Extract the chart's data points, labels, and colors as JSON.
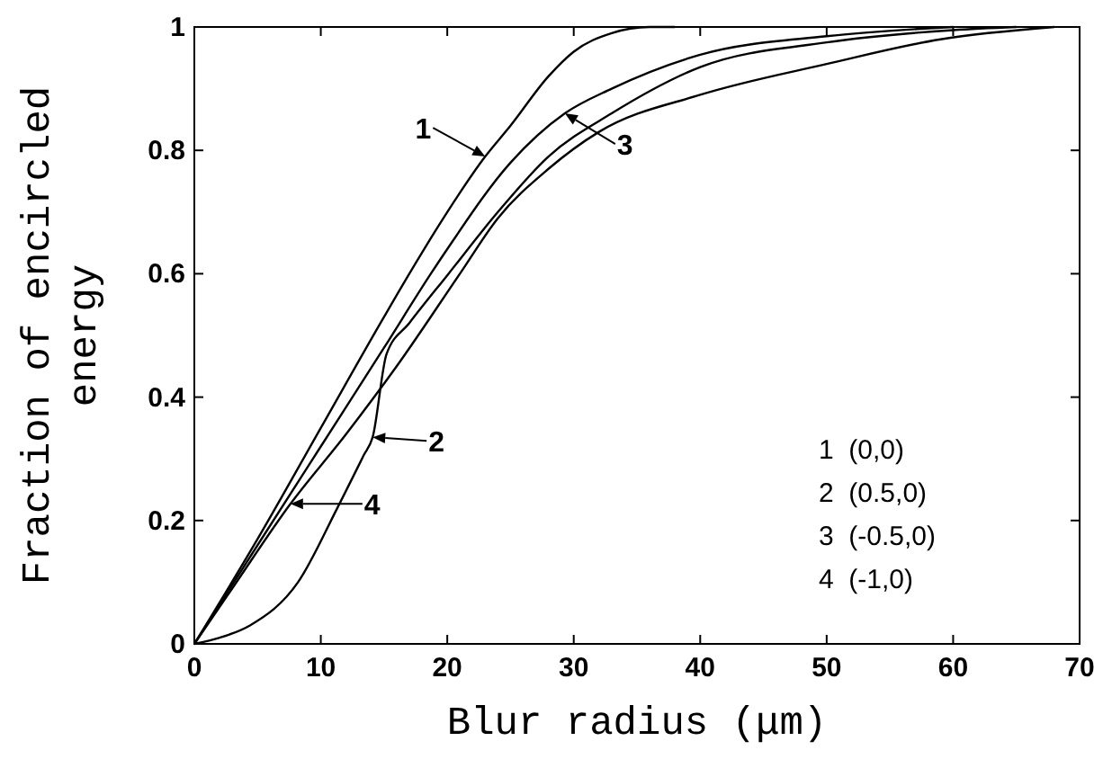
{
  "chart_data": {
    "type": "line",
    "xlabel": "Blur radius (μm)",
    "ylabel": "Fraction of encircled energy",
    "xlim": [
      0,
      70
    ],
    "ylim": [
      0,
      1
    ],
    "xticks": [
      0,
      10,
      20,
      30,
      40,
      50,
      60,
      70
    ],
    "yticks": [
      0,
      0.2,
      0.4,
      0.6,
      0.8,
      1
    ],
    "grid": false,
    "marker": "none",
    "line_style": "solid",
    "series": [
      {
        "color": "#000000",
        "x": [
          0,
          5,
          10,
          15,
          17,
          20,
          23,
          25,
          28,
          30,
          33,
          36,
          38
        ],
        "values": [
          0,
          0.17,
          0.35,
          0.53,
          0.6,
          0.7,
          0.79,
          0.84,
          0.92,
          0.96,
          0.99,
          1,
          1
        ]
      },
      {
        "color": "#000000",
        "x": [
          0,
          2,
          4.4,
          8.2,
          11.3,
          13.4,
          14.1,
          15.2,
          17,
          20.1,
          24,
          28,
          33,
          40,
          50,
          60,
          65
        ],
        "values": [
          0,
          0.01,
          0.03,
          0.1,
          0.22,
          0.306,
          0.335,
          0.47,
          0.52,
          0.6,
          0.7,
          0.79,
          0.86,
          0.935,
          0.975,
          0.995,
          1
        ]
      },
      {
        "color": "#000000",
        "x": [
          0,
          5,
          10,
          15,
          18.7,
          20,
          25,
          29.3,
          33,
          40,
          50,
          60
        ],
        "values": [
          0,
          0.16,
          0.32,
          0.48,
          0.6,
          0.64,
          0.78,
          0.86,
          0.9,
          0.955,
          0.985,
          1
        ]
      },
      {
        "color": "#000000",
        "x": [
          0,
          3,
          7.6,
          12,
          16,
          21,
          24,
          28,
          32,
          40,
          50,
          59,
          68
        ],
        "values": [
          0,
          0.09,
          0.227,
          0.34,
          0.45,
          0.6,
          0.69,
          0.77,
          0.83,
          0.89,
          0.94,
          0.98,
          1
        ]
      }
    ],
    "annotations": [
      {
        "text": "1",
        "x": 23,
        "y": 0.79
      },
      {
        "text": "2",
        "x": 14.1,
        "y": 0.335
      },
      {
        "text": "3",
        "x": 29.3,
        "y": 0.86
      },
      {
        "text": "4",
        "x": 7.6,
        "y": 0.227
      },
      "1  (0,0)",
      "2  (0.5,0)",
      "3  (-0.5,0)",
      "4  (-1,0)"
    ]
  }
}
